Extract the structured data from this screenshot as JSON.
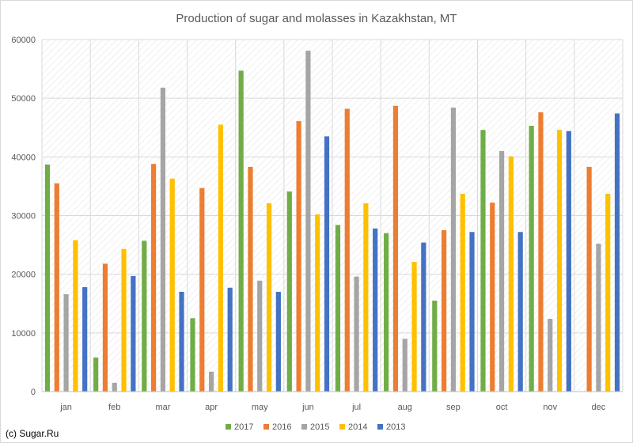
{
  "chart_data": {
    "type": "bar",
    "title": "Production of sugar and molasses in Kazakhstan, MT",
    "categories": [
      "jan",
      "feb",
      "mar",
      "apr",
      "may",
      "jun",
      "jul",
      "aug",
      "sep",
      "oct",
      "nov",
      "dec"
    ],
    "series": [
      {
        "name": "2017",
        "color": "#70ad47",
        "values": [
          38700,
          5800,
          25700,
          12500,
          54700,
          34100,
          28400,
          27000,
          15500,
          44600,
          45300,
          null
        ]
      },
      {
        "name": "2016",
        "color": "#ed7d31",
        "values": [
          35500,
          21800,
          38800,
          34700,
          38300,
          46100,
          48200,
          48700,
          27500,
          32200,
          47600,
          38300
        ]
      },
      {
        "name": "2015",
        "color": "#a5a5a5",
        "values": [
          16600,
          1500,
          51800,
          3400,
          18900,
          58100,
          19600,
          9000,
          48400,
          41000,
          12400,
          25200
        ]
      },
      {
        "name": "2014",
        "color": "#ffc000",
        "values": [
          25800,
          24300,
          36300,
          45500,
          32100,
          30200,
          32100,
          22100,
          33700,
          40100,
          44600,
          33700
        ]
      },
      {
        "name": "2013",
        "color": "#4472c4",
        "values": [
          17800,
          19700,
          17000,
          17700,
          17000,
          43500,
          27800,
          25400,
          27200,
          27200,
          44400,
          47400
        ]
      }
    ],
    "ylim": [
      0,
      60000
    ],
    "yticks": [
      "0",
      "10000",
      "20000",
      "30000",
      "40000",
      "50000",
      "60000"
    ],
    "grid": true,
    "legend": "bottom"
  },
  "credit": "(c) Sugar.Ru"
}
